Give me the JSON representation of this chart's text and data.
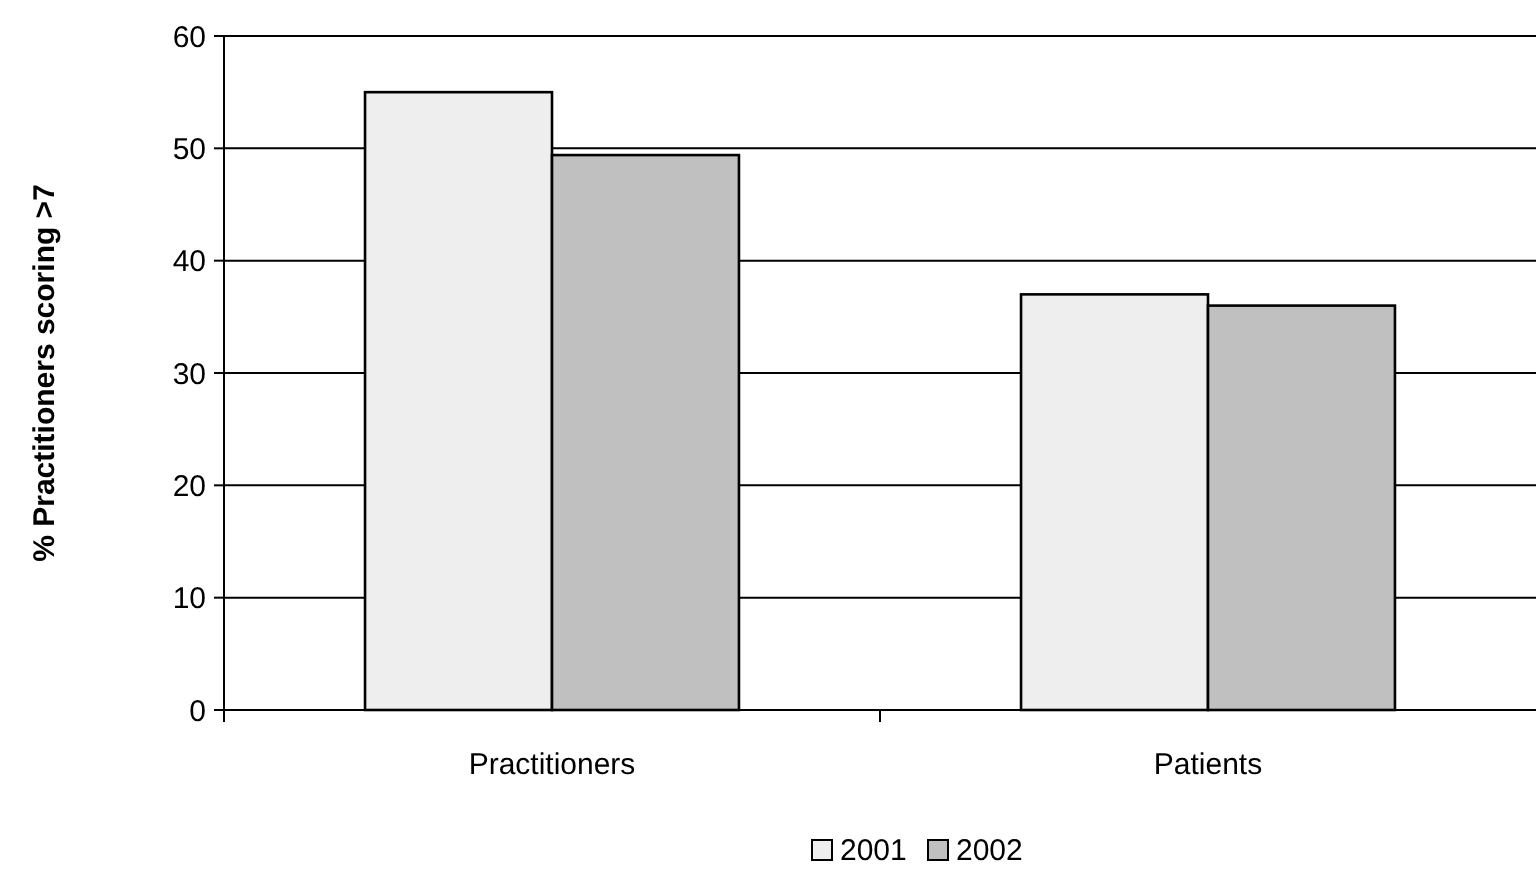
{
  "chart_data": {
    "type": "bar",
    "ylabel": "% Practitioners scoring >7",
    "categories": [
      "Practitioners",
      "Patients"
    ],
    "series": [
      {
        "name": "2001",
        "color": "#eeeeee",
        "values": [
          55,
          37
        ]
      },
      {
        "name": "2002",
        "color": "#c0c0c0",
        "values": [
          49.4,
          36
        ]
      }
    ],
    "ylim": [
      0,
      60
    ],
    "yticks": [
      0,
      10,
      20,
      30,
      40,
      50,
      60
    ],
    "grid": "y",
    "legend": "bottom"
  }
}
